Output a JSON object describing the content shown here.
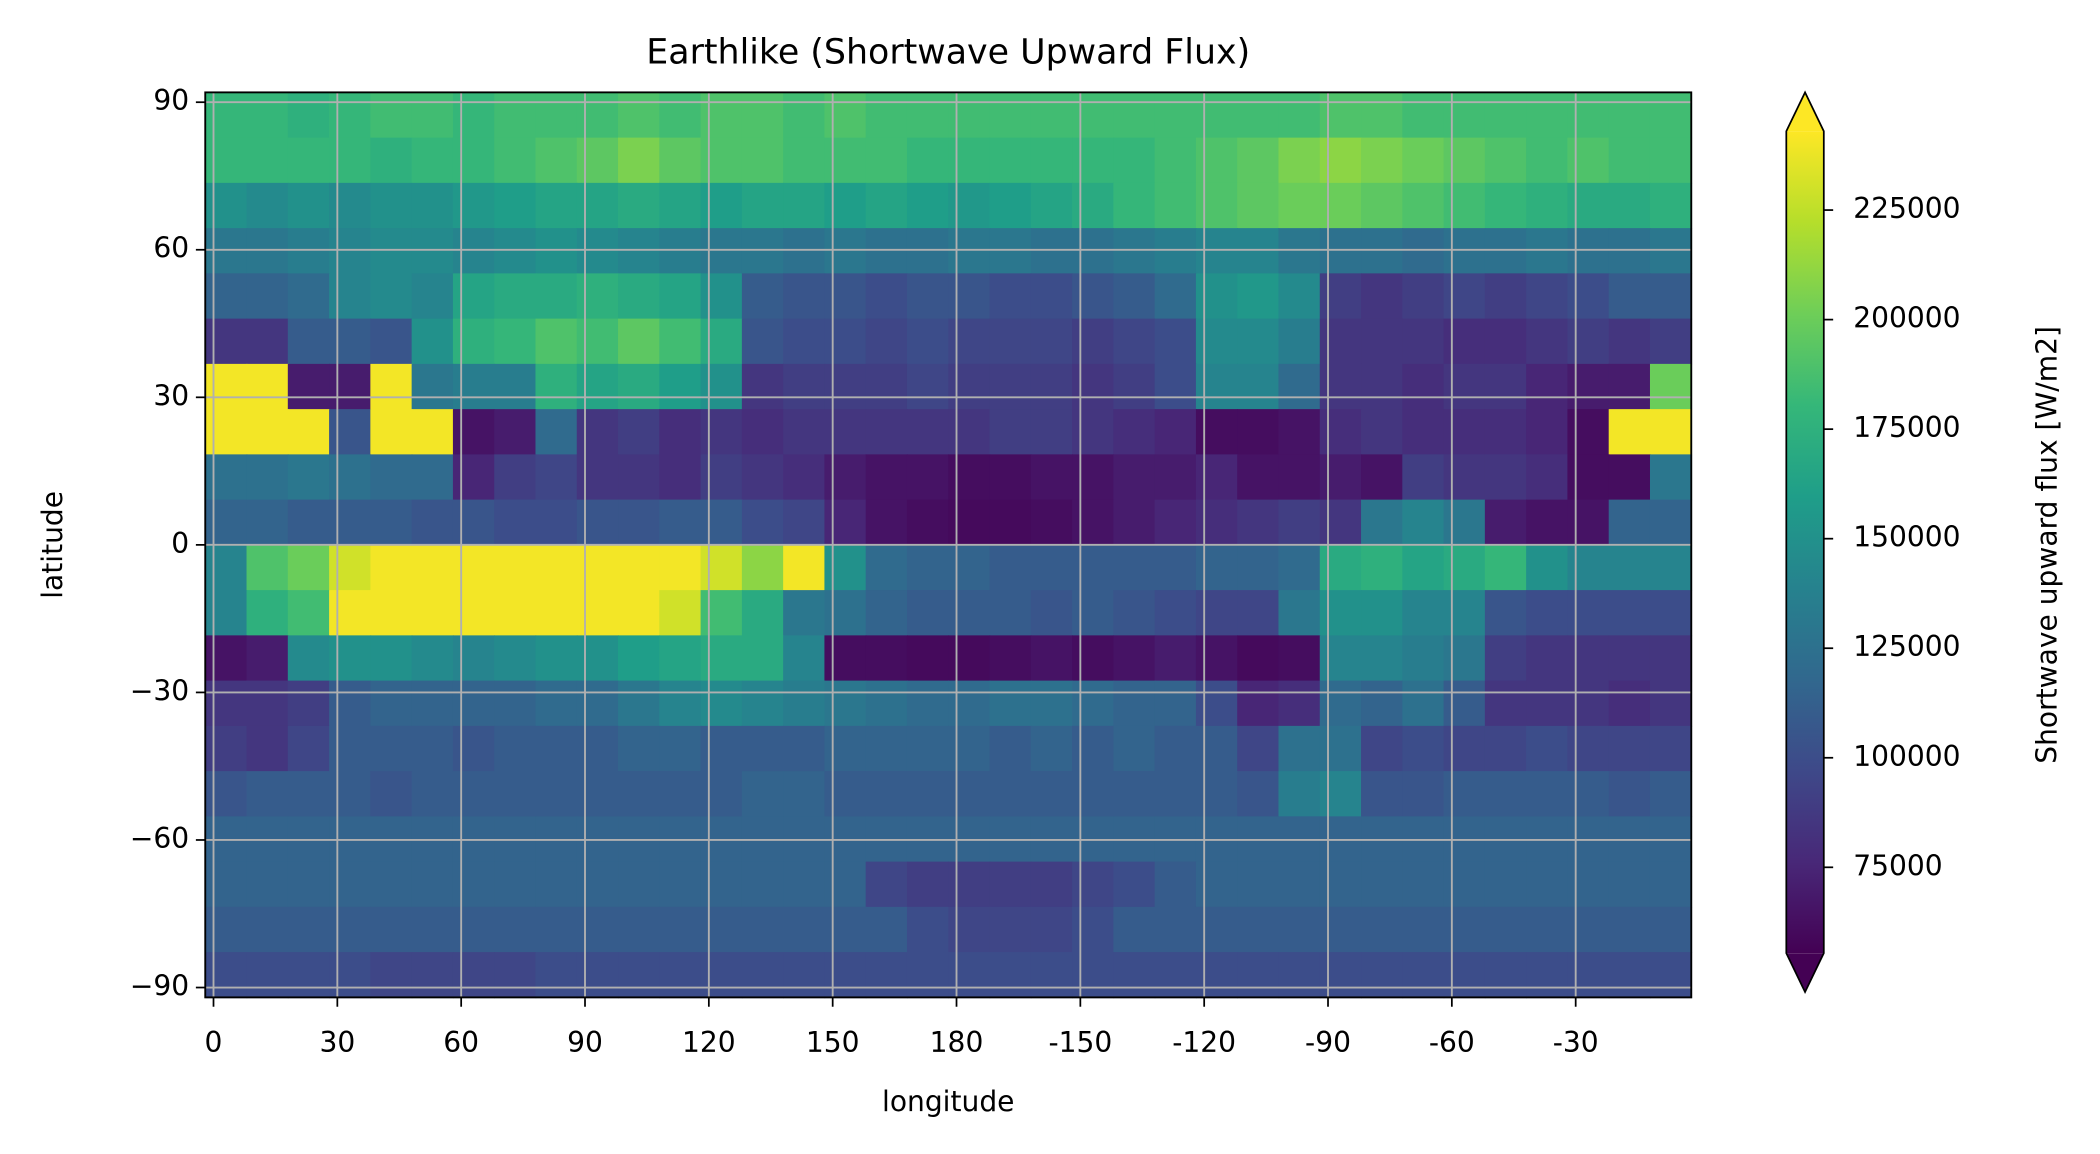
{
  "chart_data": {
    "type": "heatmap",
    "title": "Earthlike (Shortwave Upward Flux)",
    "xlabel": "longitude",
    "ylabel": "latitude",
    "colorbar_label": "Shortwave upward flux [W/m2]",
    "colormap": "viridis",
    "extend": "both",
    "grid": true,
    "xlim": [
      -2,
      358
    ],
    "ylim": [
      -92,
      92
    ],
    "clim": [
      55400,
      243000
    ],
    "xticks": [
      0,
      30,
      60,
      90,
      120,
      150,
      180,
      {
        "value": 210,
        "label": "-150"
      },
      {
        "value": 240,
        "label": "-120"
      },
      {
        "value": 270,
        "label": "-90"
      },
      {
        "value": 300,
        "label": "-60"
      },
      {
        "value": 330,
        "label": "-30"
      }
    ],
    "yticks": [
      {
        "value": -90,
        "label": "−90"
      },
      {
        "value": -60,
        "label": "−60"
      },
      {
        "value": -30,
        "label": "−30"
      },
      0,
      30,
      60,
      90
    ],
    "cticks": [
      75000,
      100000,
      125000,
      150000,
      175000,
      200000,
      225000
    ],
    "x": [
      3,
      13,
      23,
      33,
      43,
      53,
      63,
      73,
      83,
      93,
      103,
      113,
      123,
      133,
      143,
      153,
      163,
      173,
      183,
      193,
      203,
      213,
      223,
      233,
      243,
      253,
      263,
      273,
      283,
      293,
      303,
      313,
      323,
      333,
      343,
      353
    ],
    "y": [
      87.4,
      78.2,
      69,
      59.8,
      50.6,
      41.4,
      32.2,
      23,
      13.8,
      4.6,
      -4.6,
      -13.8,
      -23,
      -32.2,
      -41.4,
      -50.6,
      -59.8,
      -69,
      -78.2,
      -87.4
    ],
    "z": [
      [
        180000,
        180000,
        175000,
        180000,
        185000,
        185000,
        180000,
        185000,
        185000,
        185000,
        190000,
        185000,
        190000,
        190000,
        185000,
        190000,
        185000,
        185000,
        185000,
        185000,
        185000,
        185000,
        185000,
        185000,
        185000,
        185000,
        185000,
        190000,
        190000,
        185000,
        185000,
        185000,
        185000,
        185000,
        185000,
        185000
      ],
      [
        180000,
        180000,
        180000,
        180000,
        175000,
        180000,
        180000,
        185000,
        190000,
        195000,
        205000,
        195000,
        190000,
        190000,
        185000,
        185000,
        185000,
        180000,
        180000,
        180000,
        180000,
        180000,
        180000,
        185000,
        190000,
        195000,
        205000,
        210000,
        205000,
        200000,
        195000,
        190000,
        185000,
        190000,
        185000,
        185000
      ],
      [
        150000,
        145000,
        150000,
        145000,
        150000,
        150000,
        155000,
        160000,
        165000,
        165000,
        170000,
        165000,
        160000,
        165000,
        165000,
        160000,
        165000,
        160000,
        155000,
        160000,
        165000,
        170000,
        180000,
        185000,
        190000,
        195000,
        200000,
        200000,
        195000,
        190000,
        185000,
        180000,
        175000,
        170000,
        170000,
        175000
      ],
      [
        130000,
        130000,
        135000,
        140000,
        145000,
        145000,
        140000,
        145000,
        150000,
        145000,
        140000,
        135000,
        130000,
        130000,
        125000,
        130000,
        125000,
        125000,
        130000,
        130000,
        125000,
        125000,
        130000,
        135000,
        140000,
        140000,
        130000,
        125000,
        125000,
        120000,
        125000,
        125000,
        130000,
        125000,
        125000,
        130000
      ],
      [
        115000,
        115000,
        120000,
        140000,
        145000,
        140000,
        165000,
        170000,
        170000,
        175000,
        170000,
        165000,
        150000,
        110000,
        105000,
        105000,
        100000,
        105000,
        105000,
        100000,
        100000,
        105000,
        110000,
        120000,
        150000,
        155000,
        145000,
        90000,
        85000,
        90000,
        95000,
        90000,
        95000,
        100000,
        110000,
        110000
      ],
      [
        85000,
        85000,
        110000,
        110000,
        105000,
        150000,
        175000,
        180000,
        190000,
        185000,
        195000,
        185000,
        170000,
        105000,
        100000,
        100000,
        95000,
        100000,
        95000,
        95000,
        95000,
        90000,
        95000,
        100000,
        145000,
        145000,
        135000,
        85000,
        85000,
        85000,
        80000,
        80000,
        85000,
        90000,
        85000,
        90000
      ],
      [
        240000,
        240000,
        70000,
        70000,
        240000,
        130000,
        135000,
        135000,
        175000,
        165000,
        170000,
        160000,
        150000,
        85000,
        90000,
        90000,
        90000,
        95000,
        90000,
        90000,
        90000,
        85000,
        90000,
        100000,
        140000,
        140000,
        120000,
        85000,
        85000,
        80000,
        85000,
        85000,
        75000,
        70000,
        70000,
        200000
      ],
      [
        240000,
        240000,
        240000,
        105000,
        240000,
        240000,
        65000,
        70000,
        120000,
        85000,
        90000,
        80000,
        85000,
        80000,
        85000,
        85000,
        85000,
        85000,
        85000,
        90000,
        90000,
        85000,
        80000,
        75000,
        62000,
        62000,
        65000,
        80000,
        85000,
        80000,
        80000,
        80000,
        75000,
        62000,
        240000,
        240000
      ],
      [
        125000,
        125000,
        130000,
        125000,
        120000,
        120000,
        75000,
        90000,
        95000,
        85000,
        85000,
        80000,
        90000,
        85000,
        80000,
        70000,
        65000,
        65000,
        62000,
        62000,
        65000,
        65000,
        70000,
        70000,
        75000,
        65000,
        65000,
        70000,
        65000,
        90000,
        85000,
        85000,
        80000,
        62000,
        62000,
        130000
      ],
      [
        115000,
        115000,
        110000,
        110000,
        110000,
        105000,
        105000,
        100000,
        100000,
        105000,
        105000,
        110000,
        110000,
        100000,
        95000,
        75000,
        65000,
        62000,
        60000,
        60000,
        62000,
        65000,
        70000,
        75000,
        80000,
        85000,
        90000,
        85000,
        130000,
        140000,
        130000,
        70000,
        65000,
        65000,
        115000,
        115000
      ],
      [
        140000,
        190000,
        200000,
        230000,
        240000,
        240000,
        240000,
        240000,
        240000,
        240000,
        240000,
        240000,
        230000,
        210000,
        240000,
        150000,
        120000,
        115000,
        115000,
        110000,
        110000,
        110000,
        110000,
        110000,
        115000,
        115000,
        120000,
        170000,
        175000,
        165000,
        170000,
        180000,
        150000,
        140000,
        140000,
        140000
      ],
      [
        140000,
        175000,
        185000,
        240000,
        240000,
        240000,
        240000,
        240000,
        240000,
        240000,
        240000,
        230000,
        185000,
        170000,
        130000,
        125000,
        115000,
        110000,
        110000,
        110000,
        105000,
        110000,
        105000,
        100000,
        95000,
        95000,
        130000,
        150000,
        150000,
        140000,
        140000,
        105000,
        100000,
        100000,
        100000,
        100000
      ],
      [
        65000,
        70000,
        145000,
        150000,
        150000,
        145000,
        140000,
        145000,
        150000,
        150000,
        160000,
        165000,
        170000,
        170000,
        140000,
        62000,
        62000,
        60000,
        60000,
        62000,
        65000,
        62000,
        65000,
        70000,
        65000,
        60000,
        62000,
        140000,
        140000,
        135000,
        130000,
        90000,
        85000,
        85000,
        85000,
        85000
      ],
      [
        85000,
        85000,
        90000,
        110000,
        115000,
        115000,
        115000,
        115000,
        120000,
        120000,
        130000,
        140000,
        145000,
        140000,
        135000,
        130000,
        125000,
        120000,
        120000,
        125000,
        125000,
        120000,
        115000,
        115000,
        100000,
        75000,
        80000,
        120000,
        115000,
        125000,
        110000,
        85000,
        85000,
        85000,
        80000,
        85000
      ],
      [
        90000,
        85000,
        95000,
        110000,
        110000,
        110000,
        105000,
        110000,
        110000,
        110000,
        115000,
        115000,
        110000,
        110000,
        110000,
        115000,
        115000,
        115000,
        115000,
        110000,
        115000,
        110000,
        115000,
        110000,
        110000,
        95000,
        125000,
        125000,
        95000,
        100000,
        95000,
        95000,
        100000,
        95000,
        95000,
        95000
      ],
      [
        105000,
        110000,
        110000,
        110000,
        105000,
        110000,
        110000,
        110000,
        110000,
        110000,
        110000,
        110000,
        110000,
        115000,
        115000,
        110000,
        110000,
        110000,
        110000,
        110000,
        110000,
        110000,
        110000,
        110000,
        110000,
        105000,
        135000,
        140000,
        105000,
        105000,
        110000,
        110000,
        110000,
        110000,
        105000,
        110000
      ],
      [
        115000,
        115000,
        115000,
        115000,
        115000,
        115000,
        115000,
        115000,
        115000,
        115000,
        115000,
        115000,
        115000,
        115000,
        115000,
        115000,
        115000,
        115000,
        115000,
        115000,
        115000,
        115000,
        115000,
        115000,
        115000,
        115000,
        115000,
        115000,
        115000,
        115000,
        115000,
        115000,
        115000,
        115000,
        115000,
        115000
      ],
      [
        115000,
        115000,
        115000,
        115000,
        115000,
        115000,
        115000,
        115000,
        115000,
        115000,
        115000,
        115000,
        115000,
        115000,
        115000,
        115000,
        95000,
        90000,
        90000,
        90000,
        90000,
        95000,
        100000,
        110000,
        115000,
        115000,
        115000,
        115000,
        115000,
        115000,
        115000,
        115000,
        115000,
        115000,
        115000,
        115000
      ],
      [
        110000,
        110000,
        110000,
        110000,
        110000,
        110000,
        110000,
        110000,
        110000,
        110000,
        110000,
        110000,
        110000,
        110000,
        110000,
        110000,
        110000,
        100000,
        95000,
        95000,
        95000,
        100000,
        110000,
        110000,
        110000,
        110000,
        110000,
        110000,
        110000,
        110000,
        110000,
        110000,
        110000,
        110000,
        110000,
        110000
      ],
      [
        100000,
        100000,
        100000,
        100000,
        95000,
        95000,
        95000,
        95000,
        100000,
        100000,
        100000,
        100000,
        100000,
        100000,
        100000,
        100000,
        100000,
        100000,
        100000,
        100000,
        100000,
        100000,
        100000,
        100000,
        100000,
        100000,
        100000,
        100000,
        100000,
        100000,
        100000,
        100000,
        100000,
        100000,
        100000,
        100000
      ]
    ]
  }
}
